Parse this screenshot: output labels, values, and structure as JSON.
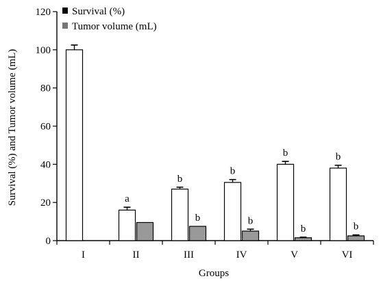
{
  "chart_data": {
    "type": "bar",
    "xlabel": "Groups",
    "ylabel": "Survival (%) and Tumor volume (mL)",
    "ylim": [
      0,
      120
    ],
    "yticks": [
      0,
      20,
      40,
      60,
      80,
      100,
      120
    ],
    "categories": [
      "I",
      "II",
      "III",
      "IV",
      "V",
      "VI"
    ],
    "grid": false,
    "legend_position": "top-left",
    "series": [
      {
        "name": "Survival (%)",
        "values": [
          100,
          16,
          27,
          30.5,
          40,
          38
        ],
        "errors": [
          2.5,
          1.5,
          1,
          1.5,
          1.5,
          1.5
        ],
        "labels": [
          "",
          "a",
          "b",
          "b",
          "b",
          "b"
        ],
        "color": "#ffffff",
        "legend_color": "#000000"
      },
      {
        "name": "Tumor volume (mL)",
        "values": [
          0,
          9.5,
          7.5,
          5,
          1.5,
          2.5
        ],
        "errors": [
          0,
          0,
          0,
          1,
          0.3,
          0.5
        ],
        "labels": [
          "",
          "",
          "b",
          "b",
          "b",
          "b"
        ],
        "color": "#999999",
        "legend_color": "#777777"
      }
    ]
  }
}
